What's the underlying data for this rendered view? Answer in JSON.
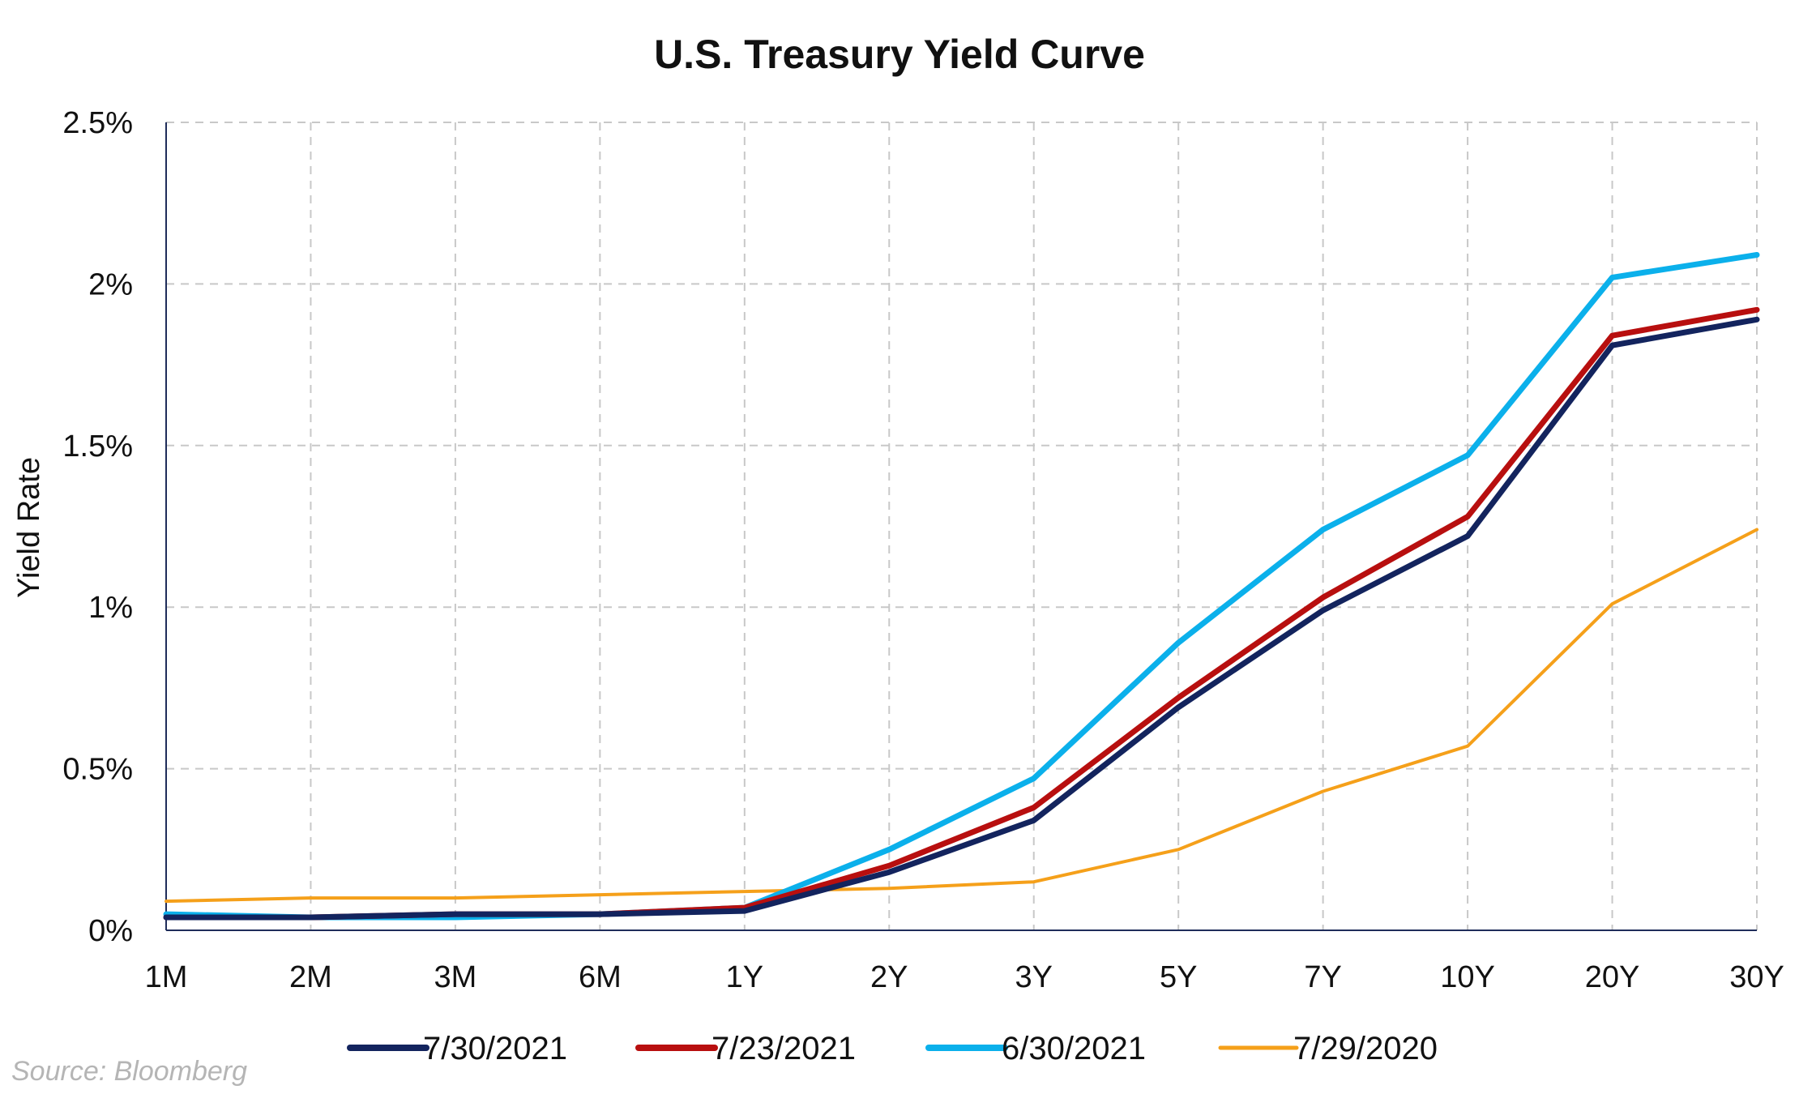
{
  "chart_data": {
    "type": "line",
    "title": "U.S. Treasury Yield Curve",
    "ylabel": "Yield Rate",
    "xlabel": "",
    "categories": [
      "1M",
      "2M",
      "3M",
      "6M",
      "1Y",
      "2Y",
      "3Y",
      "5Y",
      "7Y",
      "10Y",
      "20Y",
      "30Y"
    ],
    "ylim": [
      0,
      2.5
    ],
    "yticks": [
      0,
      0.5,
      1,
      1.5,
      2,
      2.5
    ],
    "ytick_labels": [
      "0%",
      "0.5%",
      "1%",
      "1.5%",
      "2%",
      "2.5%"
    ],
    "grid": true,
    "legend_position": "bottom",
    "series": [
      {
        "name": "7/30/2021",
        "color": "#13245e",
        "values": [
          0.04,
          0.04,
          0.05,
          0.05,
          0.06,
          0.18,
          0.34,
          0.69,
          0.99,
          1.22,
          1.81,
          1.89
        ]
      },
      {
        "name": "7/23/2021",
        "color": "#b80f0f",
        "values": [
          0.04,
          0.04,
          0.05,
          0.05,
          0.07,
          0.2,
          0.38,
          0.72,
          1.03,
          1.28,
          1.84,
          1.92
        ]
      },
      {
        "name": "6/30/2021",
        "color": "#0bb0eb",
        "values": [
          0.05,
          0.04,
          0.04,
          0.05,
          0.07,
          0.25,
          0.47,
          0.89,
          1.24,
          1.47,
          2.02,
          2.09
        ]
      },
      {
        "name": "7/29/2020",
        "color": "#f5a01a",
        "values": [
          0.09,
          0.1,
          0.1,
          0.11,
          0.12,
          0.13,
          0.15,
          0.25,
          0.43,
          0.57,
          1.01,
          1.24
        ]
      }
    ]
  },
  "source_note": "Source: Bloomberg"
}
